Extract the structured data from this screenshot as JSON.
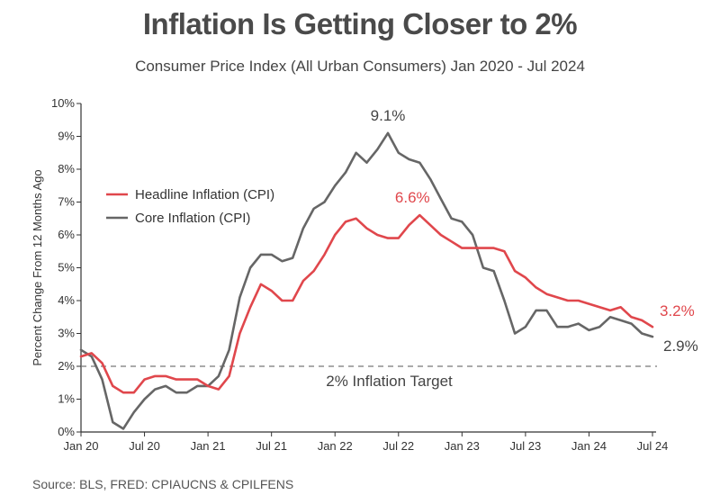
{
  "header": {
    "title": "Inflation Is Getting Closer to 2%",
    "subtitle": "Consumer Price Index (All Urban Consumers) Jan 2020 - Jul 2024"
  },
  "footer": {
    "source": "Source: BLS, FRED: CPIAUCNS & CPILFENS"
  },
  "chart_data": {
    "type": "line",
    "title": "Inflation Is Getting Closer to 2%",
    "subtitle": "Consumer Price Index (All Urban Consumers) Jan 2020 - Jul 2024",
    "xlabel": "",
    "ylabel": "Percent Change From 12 Months Ago",
    "x_tick_labels": [
      "Jan 20",
      "Jul 20",
      "Jan 21",
      "Jul 21",
      "Jan 22",
      "Jul 22",
      "Jan 23",
      "Jul 23",
      "Jan 24",
      "Jul 24"
    ],
    "y_tick_labels": [
      "0%",
      "1%",
      "2%",
      "3%",
      "4%",
      "5%",
      "6%",
      "7%",
      "8%",
      "9%",
      "10%"
    ],
    "ylim": [
      0,
      10
    ],
    "grid": false,
    "legend_position": "left",
    "x": [
      "2020-01",
      "2020-02",
      "2020-03",
      "2020-04",
      "2020-05",
      "2020-06",
      "2020-07",
      "2020-08",
      "2020-09",
      "2020-10",
      "2020-11",
      "2020-12",
      "2021-01",
      "2021-02",
      "2021-03",
      "2021-04",
      "2021-05",
      "2021-06",
      "2021-07",
      "2021-08",
      "2021-09",
      "2021-10",
      "2021-11",
      "2021-12",
      "2022-01",
      "2022-02",
      "2022-03",
      "2022-04",
      "2022-05",
      "2022-06",
      "2022-07",
      "2022-08",
      "2022-09",
      "2022-10",
      "2022-11",
      "2022-12",
      "2023-01",
      "2023-02",
      "2023-03",
      "2023-04",
      "2023-05",
      "2023-06",
      "2023-07",
      "2023-08",
      "2023-09",
      "2023-10",
      "2023-11",
      "2023-12",
      "2024-01",
      "2024-02",
      "2024-03",
      "2024-04",
      "2024-05",
      "2024-06",
      "2024-07"
    ],
    "series": [
      {
        "name": "Headline Inflation (CPI)",
        "color": "#e0474c",
        "values": [
          2.3,
          2.4,
          2.1,
          1.4,
          1.2,
          1.2,
          1.6,
          1.7,
          1.7,
          1.6,
          1.6,
          1.6,
          1.4,
          1.3,
          1.7,
          3.0,
          3.8,
          4.5,
          4.3,
          4.0,
          4.0,
          4.6,
          4.9,
          5.4,
          6.0,
          6.4,
          6.5,
          6.2,
          6.0,
          5.9,
          5.9,
          6.3,
          6.6,
          6.3,
          6.0,
          5.8,
          5.6,
          5.6,
          5.6,
          5.6,
          5.5,
          4.9,
          4.7,
          4.4,
          4.2,
          4.1,
          4.0,
          4.0,
          3.9,
          3.8,
          3.7,
          3.8,
          3.5,
          3.4,
          3.2
        ],
        "end_label": "3.2%",
        "peak_label": "6.6%"
      },
      {
        "name": "Core Inflation (CPI)",
        "color": "#666666",
        "values": [
          2.5,
          2.3,
          1.6,
          0.3,
          0.1,
          0.6,
          1.0,
          1.3,
          1.4,
          1.2,
          1.2,
          1.4,
          1.4,
          1.7,
          2.5,
          4.1,
          5.0,
          5.4,
          5.4,
          5.2,
          5.3,
          6.2,
          6.8,
          7.0,
          7.5,
          7.9,
          8.5,
          8.2,
          8.6,
          9.1,
          8.5,
          8.3,
          8.2,
          7.7,
          7.1,
          6.5,
          6.4,
          6.0,
          5.0,
          4.9,
          4.0,
          3.0,
          3.2,
          3.7,
          3.7,
          3.2,
          3.2,
          3.3,
          3.1,
          3.2,
          3.5,
          3.4,
          3.3,
          3.0,
          2.9
        ],
        "end_label": "2.9%",
        "peak_label": "9.1%"
      }
    ],
    "reference_line": {
      "value": 2,
      "label": "2% Inflation Target",
      "color": "#777777"
    }
  }
}
